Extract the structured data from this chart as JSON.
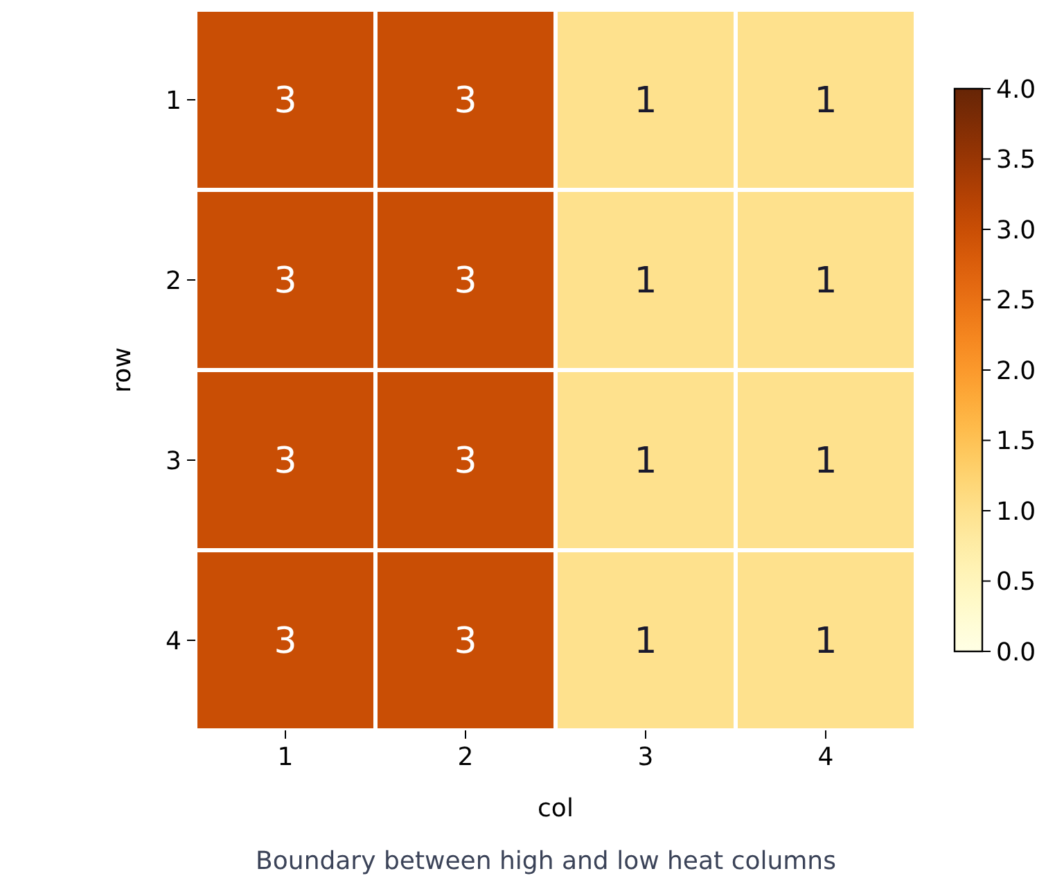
{
  "chart_data": {
    "type": "heatmap",
    "title": "Boundary between high and low heat columns",
    "xlabel": "col",
    "ylabel": "row",
    "categories": [
      "1",
      "2",
      "3",
      "4"
    ],
    "y_categories": [
      "1",
      "2",
      "3",
      "4"
    ],
    "cells": [
      [
        3,
        3,
        1,
        1
      ],
      [
        3,
        3,
        1,
        1
      ],
      [
        3,
        3,
        1,
        1
      ],
      [
        3,
        3,
        1,
        1
      ]
    ],
    "clim": [
      0,
      4
    ],
    "cticks": [
      {
        "value": 0,
        "label": "0.0"
      },
      {
        "value": 0.5,
        "label": "0.5"
      },
      {
        "value": 1,
        "label": "1.0"
      },
      {
        "value": 1.5,
        "label": "1.5"
      },
      {
        "value": 2,
        "label": "2.0"
      },
      {
        "value": 2.5,
        "label": "2.5"
      },
      {
        "value": 3,
        "label": "3.0"
      },
      {
        "value": 3.5,
        "label": "3.5"
      },
      {
        "value": 4,
        "label": "4.0"
      }
    ],
    "data_labels": true
  }
}
